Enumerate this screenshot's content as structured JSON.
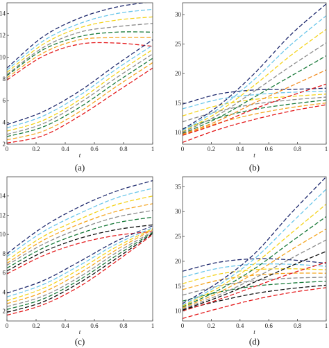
{
  "colors": [
    "#1f2a6e",
    "#6cc7ea",
    "#f4d31c",
    "#f5a623",
    "#8c8c8c",
    "#1a7a3a",
    "#111111",
    "#e41a1c",
    "#f28b20"
  ],
  "chart_data": [
    {
      "type": "line",
      "caption": "(a)",
      "xlabel": "t",
      "xlim": [
        0,
        1
      ],
      "ylim": [
        2,
        15
      ],
      "xticks": [
        0,
        0.2,
        0.4,
        0.6,
        0.8,
        1
      ],
      "xtick_labels": [
        "0",
        "0.2",
        "0.4",
        "0.6",
        "0.8",
        "1"
      ],
      "yticks": [
        2,
        4,
        6,
        8,
        10,
        12,
        14
      ],
      "ytick_labels": [
        "2",
        "4",
        "6",
        "8",
        "10",
        "12",
        "14"
      ],
      "series": [
        {
          "color": "#1f2a6e",
          "x": [
            0,
            0.25,
            0.5,
            0.75,
            1
          ],
          "y": [
            9.0,
            11.9,
            13.6,
            14.6,
            15.1
          ]
        },
        {
          "color": "#6cc7ea",
          "x": [
            0,
            0.25,
            0.5,
            0.75,
            1
          ],
          "y": [
            8.8,
            11.5,
            13.1,
            14.0,
            14.4
          ]
        },
        {
          "color": "#f4d31c",
          "x": [
            0,
            0.25,
            0.5,
            0.75,
            1
          ],
          "y": [
            8.6,
            11.2,
            12.7,
            13.4,
            13.7
          ]
        },
        {
          "color": "#8c8c8c",
          "x": [
            0,
            0.25,
            0.5,
            0.75,
            1
          ],
          "y": [
            8.4,
            10.9,
            12.3,
            12.8,
            13.1
          ]
        },
        {
          "color": "#1a7a3a",
          "x": [
            0,
            0.25,
            0.5,
            0.75,
            1
          ],
          "y": [
            8.3,
            10.7,
            11.9,
            12.3,
            12.3
          ]
        },
        {
          "color": "#f5a623",
          "x": [
            0,
            0.25,
            0.5,
            0.75,
            1
          ],
          "y": [
            8.1,
            10.4,
            11.6,
            11.8,
            11.8
          ]
        },
        {
          "color": "#e41a1c",
          "x": [
            0,
            0.25,
            0.5,
            0.75,
            1
          ],
          "y": [
            7.9,
            10.1,
            11.2,
            11.3,
            11.0
          ]
        },
        {
          "color": "#1f2a6e",
          "x": [
            0,
            0.25,
            0.5,
            0.75,
            1
          ],
          "y": [
            3.8,
            5.0,
            6.9,
            9.3,
            11.6
          ]
        },
        {
          "color": "#6cc7ea",
          "x": [
            0,
            0.25,
            0.5,
            0.75,
            1
          ],
          "y": [
            3.5,
            4.6,
            6.5,
            8.9,
            11.1
          ]
        },
        {
          "color": "#f4d31c",
          "x": [
            0,
            0.25,
            0.5,
            0.75,
            1
          ],
          "y": [
            3.2,
            4.2,
            6.1,
            8.5,
            10.7
          ]
        },
        {
          "color": "#8c8c8c",
          "x": [
            0,
            0.25,
            0.5,
            0.75,
            1
          ],
          "y": [
            2.9,
            3.9,
            5.8,
            8.1,
            10.3
          ]
        },
        {
          "color": "#1a7a3a",
          "x": [
            0,
            0.25,
            0.5,
            0.75,
            1
          ],
          "y": [
            2.7,
            3.6,
            5.4,
            7.7,
            9.9
          ]
        },
        {
          "color": "#f5a623",
          "x": [
            0,
            0.25,
            0.5,
            0.75,
            1
          ],
          "y": [
            2.4,
            3.2,
            5.0,
            7.3,
            9.5
          ]
        },
        {
          "color": "#e41a1c",
          "x": [
            0,
            0.25,
            0.5,
            0.75,
            1
          ],
          "y": [
            2.1,
            2.8,
            4.6,
            6.8,
            9.0
          ]
        }
      ]
    },
    {
      "type": "line",
      "caption": "(b)",
      "xlabel": "t",
      "xlim": [
        0,
        1
      ],
      "ylim": [
        8,
        32
      ],
      "xticks": [
        0,
        0.2,
        0.4,
        0.6,
        0.8,
        1
      ],
      "xtick_labels": [
        "0",
        "0.2",
        "0.4",
        "0.6",
        "0.8",
        "1"
      ],
      "yticks": [
        10,
        15,
        20,
        25,
        30
      ],
      "ytick_labels": [
        "10",
        "15",
        "20",
        "25",
        "30"
      ],
      "series": [
        {
          "color": "#1f2a6e",
          "x": [
            0,
            0.25,
            0.5,
            0.75,
            1
          ],
          "y": [
            14.8,
            16.5,
            17.2,
            17.3,
            17.5
          ]
        },
        {
          "color": "#6cc7ea",
          "x": [
            0,
            0.25,
            0.5,
            0.75,
            1
          ],
          "y": [
            14.0,
            15.6,
            16.4,
            16.8,
            17.0
          ]
        },
        {
          "color": "#f4d31c",
          "x": [
            0,
            0.25,
            0.5,
            0.75,
            1
          ],
          "y": [
            12.8,
            14.6,
            15.6,
            16.1,
            16.5
          ]
        },
        {
          "color": "#8c8c8c",
          "x": [
            0,
            0.25,
            0.5,
            0.75,
            1
          ],
          "y": [
            11.8,
            13.6,
            14.8,
            15.5,
            16.0
          ]
        },
        {
          "color": "#1a7a3a",
          "x": [
            0,
            0.25,
            0.5,
            0.75,
            1
          ],
          "y": [
            10.6,
            12.5,
            13.9,
            14.8,
            15.5
          ]
        },
        {
          "color": "#f5a623",
          "x": [
            0,
            0.25,
            0.5,
            0.75,
            1
          ],
          "y": [
            9.6,
            11.6,
            13.1,
            14.2,
            15.0
          ]
        },
        {
          "color": "#e41a1c",
          "x": [
            0,
            0.25,
            0.5,
            0.75,
            1
          ],
          "y": [
            8.3,
            10.5,
            12.2,
            13.6,
            14.7
          ]
        },
        {
          "color": "#1f2a6e",
          "x": [
            0,
            0.25,
            0.5,
            0.75,
            1
          ],
          "y": [
            10.5,
            14.5,
            20.0,
            26.5,
            31.8
          ]
        },
        {
          "color": "#6cc7ea",
          "x": [
            0,
            0.25,
            0.5,
            0.75,
            1
          ],
          "y": [
            10.3,
            14.0,
            19.0,
            24.8,
            29.8
          ]
        },
        {
          "color": "#f4d31c",
          "x": [
            0,
            0.25,
            0.5,
            0.75,
            1
          ],
          "y": [
            10.1,
            13.5,
            18.0,
            23.0,
            27.5
          ]
        },
        {
          "color": "#8c8c8c",
          "x": [
            0,
            0.25,
            0.5,
            0.75,
            1
          ],
          "y": [
            10.0,
            13.0,
            17.0,
            21.2,
            25.2
          ]
        },
        {
          "color": "#1a7a3a",
          "x": [
            0,
            0.25,
            0.5,
            0.75,
            1
          ],
          "y": [
            9.8,
            12.5,
            16.0,
            19.5,
            23.0
          ]
        },
        {
          "color": "#f28b20",
          "x": [
            0,
            0.25,
            0.5,
            0.75,
            1
          ],
          "y": [
            9.7,
            12.0,
            15.0,
            17.8,
            20.6
          ]
        },
        {
          "color": "#e41a1c",
          "x": [
            0,
            0.25,
            0.5,
            0.75,
            1
          ],
          "y": [
            9.5,
            11.5,
            14.0,
            16.2,
            18.2
          ]
        }
      ]
    },
    {
      "type": "line",
      "caption": "(c)",
      "xlabel": "t",
      "xlim": [
        0,
        1
      ],
      "ylim": [
        1,
        16
      ],
      "xticks": [
        0,
        0.2,
        0.4,
        0.6,
        0.8,
        1
      ],
      "xtick_labels": [
        "0",
        "0.2",
        "0.4",
        "0.6",
        "0.8",
        "1"
      ],
      "yticks": [
        2,
        4,
        6,
        8,
        10,
        12,
        14
      ],
      "ytick_labels": [
        "2",
        "4",
        "6",
        "8",
        "10",
        "12",
        "14"
      ],
      "series": [
        {
          "color": "#1f2a6e",
          "x": [
            0,
            0.25,
            0.5,
            0.75,
            1
          ],
          "y": [
            8.0,
            10.8,
            12.9,
            14.5,
            15.6
          ]
        },
        {
          "color": "#6cc7ea",
          "x": [
            0,
            0.25,
            0.5,
            0.75,
            1
          ],
          "y": [
            7.7,
            10.3,
            12.2,
            13.8,
            14.8
          ]
        },
        {
          "color": "#f4d31c",
          "x": [
            0,
            0.25,
            0.5,
            0.75,
            1
          ],
          "y": [
            7.3,
            9.8,
            11.6,
            13.1,
            14.0
          ]
        },
        {
          "color": "#f5a623",
          "x": [
            0,
            0.25,
            0.5,
            0.75,
            1
          ],
          "y": [
            7.0,
            9.4,
            11.1,
            12.4,
            13.2
          ]
        },
        {
          "color": "#8c8c8c",
          "x": [
            0,
            0.25,
            0.5,
            0.75,
            1
          ],
          "y": [
            6.8,
            9.0,
            10.6,
            11.8,
            12.5
          ]
        },
        {
          "color": "#1a7a3a",
          "x": [
            0,
            0.25,
            0.5,
            0.75,
            1
          ],
          "y": [
            6.5,
            8.6,
            10.1,
            11.2,
            11.8
          ]
        },
        {
          "color": "#111111",
          "x": [
            0,
            0.25,
            0.5,
            0.75,
            1
          ],
          "y": [
            6.2,
            8.2,
            9.6,
            10.5,
            11.0
          ]
        },
        {
          "color": "#e41a1c",
          "x": [
            0,
            0.25,
            0.5,
            0.75,
            1
          ],
          "y": [
            5.9,
            7.8,
            9.1,
            9.9,
            10.3
          ]
        },
        {
          "color": "#1f2a6e",
          "x": [
            0,
            0.25,
            0.5,
            0.75,
            1
          ],
          "y": [
            3.9,
            5.2,
            7.2,
            9.3,
            10.9
          ]
        },
        {
          "color": "#6cc7ea",
          "x": [
            0,
            0.25,
            0.5,
            0.75,
            1
          ],
          "y": [
            3.5,
            4.8,
            6.8,
            9.0,
            10.7
          ]
        },
        {
          "color": "#f4d31c",
          "x": [
            0,
            0.25,
            0.5,
            0.75,
            1
          ],
          "y": [
            3.1,
            4.4,
            6.4,
            8.7,
            10.6
          ]
        },
        {
          "color": "#f5a623",
          "x": [
            0,
            0.25,
            0.5,
            0.75,
            1
          ],
          "y": [
            2.8,
            4.0,
            6.0,
            8.4,
            10.5
          ]
        },
        {
          "color": "#8c8c8c",
          "x": [
            0,
            0.25,
            0.5,
            0.75,
            1
          ],
          "y": [
            2.5,
            3.6,
            5.6,
            8.1,
            10.3
          ]
        },
        {
          "color": "#1a7a3a",
          "x": [
            0,
            0.25,
            0.5,
            0.75,
            1
          ],
          "y": [
            2.2,
            3.3,
            5.3,
            7.8,
            10.2
          ]
        },
        {
          "color": "#111111",
          "x": [
            0,
            0.25,
            0.5,
            0.75,
            1
          ],
          "y": [
            1.9,
            3.0,
            5.0,
            7.5,
            10.1
          ]
        },
        {
          "color": "#e41a1c",
          "x": [
            0,
            0.25,
            0.5,
            0.75,
            1
          ],
          "y": [
            1.6,
            2.7,
            4.6,
            7.2,
            10.0
          ]
        }
      ]
    },
    {
      "type": "line",
      "caption": "(d)",
      "xlabel": "t",
      "xlim": [
        0,
        1
      ],
      "ylim": [
        8,
        37
      ],
      "xticks": [
        0,
        0.2,
        0.4,
        0.6,
        0.8,
        1
      ],
      "xtick_labels": [
        "0",
        "0.2",
        "0.4",
        "0.6",
        "0.8",
        "1"
      ],
      "yticks": [
        10,
        15,
        20,
        25,
        30,
        35
      ],
      "ytick_labels": [
        "10",
        "15",
        "20",
        "25",
        "30",
        "35"
      ],
      "series": [
        {
          "color": "#1f2a6e",
          "x": [
            0,
            0.25,
            0.5,
            0.75,
            1
          ],
          "y": [
            18.0,
            19.8,
            20.5,
            20.3,
            19.6
          ]
        },
        {
          "color": "#6cc7ea",
          "x": [
            0,
            0.25,
            0.5,
            0.75,
            1
          ],
          "y": [
            16.8,
            18.6,
            19.4,
            19.4,
            19.0
          ]
        },
        {
          "color": "#f4d31c",
          "x": [
            0,
            0.25,
            0.5,
            0.75,
            1
          ],
          "y": [
            15.5,
            17.4,
            18.3,
            18.5,
            18.3
          ]
        },
        {
          "color": "#f5a623",
          "x": [
            0,
            0.25,
            0.5,
            0.75,
            1
          ],
          "y": [
            14.3,
            16.2,
            17.2,
            17.6,
            17.6
          ]
        },
        {
          "color": "#8c8c8c",
          "x": [
            0,
            0.25,
            0.5,
            0.75,
            1
          ],
          "y": [
            13.2,
            15.0,
            16.1,
            16.6,
            16.8
          ]
        },
        {
          "color": "#1a7a3a",
          "x": [
            0,
            0.25,
            0.5,
            0.75,
            1
          ],
          "y": [
            12.0,
            13.8,
            15.0,
            15.6,
            16.0
          ]
        },
        {
          "color": "#111111",
          "x": [
            0,
            0.25,
            0.5,
            0.75,
            1
          ],
          "y": [
            10.2,
            12.0,
            13.5,
            14.5,
            15.2
          ]
        },
        {
          "color": "#e41a1c",
          "x": [
            0,
            0.25,
            0.5,
            0.75,
            1
          ],
          "y": [
            8.5,
            10.5,
            12.3,
            13.7,
            14.7
          ]
        },
        {
          "color": "#1f2a6e",
          "x": [
            0,
            0.25,
            0.5,
            0.75,
            1
          ],
          "y": [
            11.5,
            15.8,
            21.5,
            29.5,
            37.0
          ]
        },
        {
          "color": "#6cc7ea",
          "x": [
            0,
            0.25,
            0.5,
            0.75,
            1
          ],
          "y": [
            11.2,
            15.2,
            20.5,
            27.5,
            34.5
          ]
        },
        {
          "color": "#f4d31c",
          "x": [
            0,
            0.25,
            0.5,
            0.75,
            1
          ],
          "y": [
            11.0,
            14.7,
            19.5,
            25.5,
            31.5
          ]
        },
        {
          "color": "#1a7a3a",
          "x": [
            0,
            0.25,
            0.5,
            0.75,
            1
          ],
          "y": [
            10.8,
            14.2,
            18.5,
            23.8,
            29.0
          ]
        },
        {
          "color": "#f5a623",
          "x": [
            0,
            0.25,
            0.5,
            0.75,
            1
          ],
          "y": [
            10.6,
            13.7,
            17.6,
            22.2,
            26.5
          ]
        },
        {
          "color": "#8c8c8c",
          "x": [
            0,
            0.25,
            0.5,
            0.75,
            1
          ],
          "y": [
            10.4,
            13.2,
            16.6,
            20.5,
            24.3
          ]
        },
        {
          "color": "#111111",
          "x": [
            0,
            0.25,
            0.5,
            0.75,
            1
          ],
          "y": [
            10.2,
            12.8,
            15.8,
            19.0,
            22.0
          ]
        },
        {
          "color": "#e41a1c",
          "x": [
            0,
            0.25,
            0.5,
            0.75,
            1
          ],
          "y": [
            10.0,
            12.3,
            14.9,
            17.5,
            19.8
          ]
        }
      ]
    }
  ]
}
